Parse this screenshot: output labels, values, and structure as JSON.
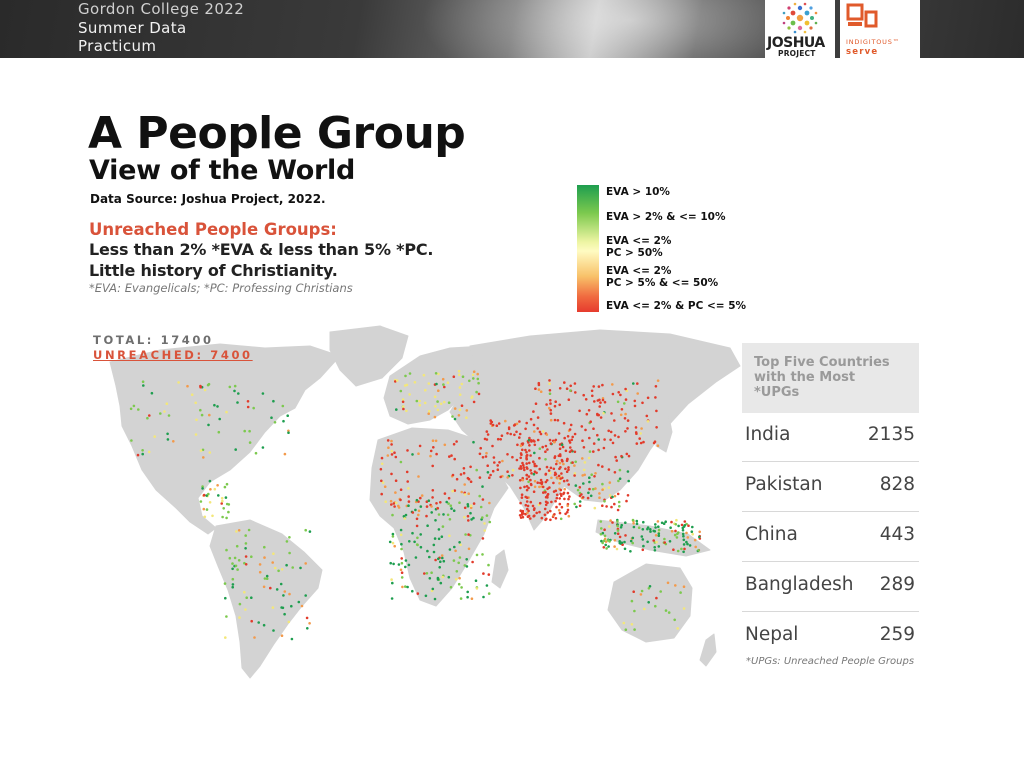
{
  "banner": {
    "line1": "Gordon College 2022",
    "line2": "Summer Data",
    "line3": "Practicum"
  },
  "logos": {
    "joshua_word": "JOSHUA",
    "joshua_sub": "PROJECT",
    "indigitous_word": "INDIGITOUS™",
    "indigitous_serve": "serve"
  },
  "title": "A People Group",
  "subtitle": "View of the World",
  "source": "Data Source: Joshua Project, 2022.",
  "definition": {
    "heading": "Unreached People Groups:",
    "line1": "Less than 2% *EVA & less than 5% *PC.",
    "line2": "Little history of Christianity.",
    "note": "*EVA: Evangelicals; *PC: Professing Christians"
  },
  "legend": {
    "items": [
      {
        "label": "EVA > 10%",
        "color": "#1e9e4f"
      },
      {
        "label": "EVA > 2% & <= 10%",
        "color": "#7cc94e"
      },
      {
        "label": "EVA <= 2%",
        "label2": "PC > 50%",
        "color": "#fffbc2"
      },
      {
        "label": "EVA <= 2%",
        "label2": "PC > 5% & <= 50%",
        "color": "#f8a55a"
      },
      {
        "label": "EVA <= 2% & PC <= 5%",
        "color": "#e63b2e"
      }
    ]
  },
  "totals": {
    "total": "TOTAL: 17400",
    "unreached": "UNREACHED: 7400"
  },
  "top_five": {
    "header": [
      "Top Five Countries",
      "with the Most",
      "*UPGs"
    ],
    "rows": [
      {
        "country": "India",
        "count": "2135"
      },
      {
        "country": "Pakistan",
        "count": "828"
      },
      {
        "country": "China",
        "count": "443"
      },
      {
        "country": "Bangladesh",
        "count": "289"
      },
      {
        "country": "Nepal",
        "count": "259"
      }
    ],
    "note": "*UPGs: Unreached People Groups"
  },
  "colors": {
    "accent_red": "#d9533a",
    "land": "#d3d3d3",
    "green_dark": "#1e9e4f",
    "green_light": "#7cc94e",
    "yellow": "#f3e77a",
    "orange": "#f39a4b",
    "red": "#e23b2b"
  }
}
